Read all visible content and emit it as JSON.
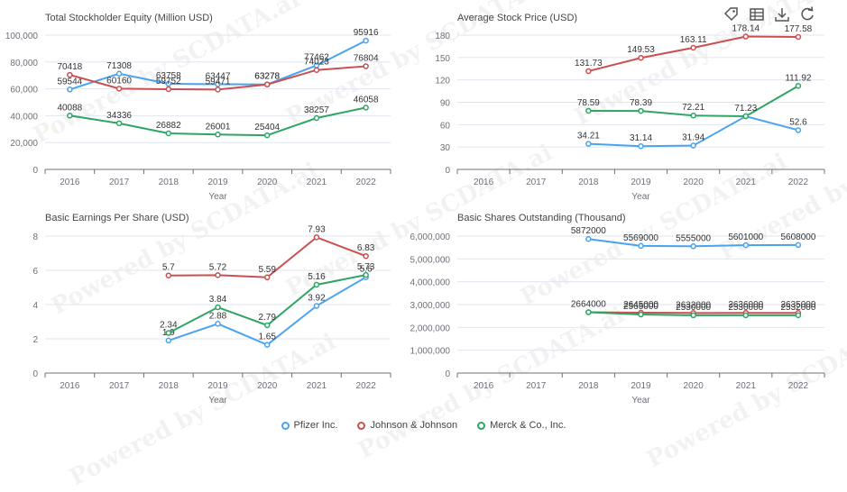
{
  "toolbar": [
    {
      "name": "tag-icon",
      "label": "tag"
    },
    {
      "name": "table-icon",
      "label": "data view"
    },
    {
      "name": "download-icon",
      "label": "download"
    },
    {
      "name": "refresh-icon",
      "label": "refresh"
    }
  ],
  "watermark": "Powered by SCDATA.ai",
  "legend": [
    {
      "name": "Pfizer Inc.",
      "color": "#4aa3ef"
    },
    {
      "name": "Johnson & Johnson",
      "color": "#c9504f"
    },
    {
      "name": "Merck & Co., Inc.",
      "color": "#2fa563"
    }
  ],
  "chart_data": [
    {
      "type": "line",
      "title": "Total Stockholder Equity (Million USD)",
      "xlabel": "Year",
      "categories": [
        "2016",
        "2017",
        "2018",
        "2019",
        "2020",
        "2021",
        "2022"
      ],
      "ylim": [
        0,
        100000
      ],
      "yticks": [
        0,
        20000,
        40000,
        60000,
        80000,
        100000
      ],
      "ytick_labels": [
        "0",
        "20,000",
        "40,000",
        "60,000",
        "80,000",
        "100,000"
      ],
      "grid": true,
      "series": [
        {
          "name": "Pfizer Inc.",
          "values": [
            59544,
            71308,
            63758,
            63447,
            63278,
            77462,
            95916
          ],
          "labels": [
            "59544",
            "71308",
            "63758",
            "63447",
            "63278",
            "77462",
            "95916"
          ]
        },
        {
          "name": "Johnson & Johnson",
          "values": [
            70418,
            60160,
            59752,
            59471,
            63278,
            74023,
            76804
          ],
          "labels": [
            "70418",
            "60160",
            "59752",
            "59471",
            "63278",
            "74023",
            "76804"
          ]
        },
        {
          "name": "Merck & Co., Inc.",
          "values": [
            40088,
            34336,
            26882,
            26001,
            25404,
            38257,
            46058
          ],
          "labels": [
            "40088",
            "34336",
            "26882",
            "26001",
            "25404",
            "38257",
            "46058"
          ]
        }
      ]
    },
    {
      "type": "line",
      "title": "Average Stock Price (USD)",
      "xlabel": "Year",
      "categories": [
        "2016",
        "2017",
        "2018",
        "2019",
        "2020",
        "2021",
        "2022"
      ],
      "ylim": [
        0,
        180
      ],
      "yticks": [
        0,
        30,
        60,
        90,
        120,
        150,
        180
      ],
      "ytick_labels": [
        "0",
        "30",
        "60",
        "90",
        "120",
        "150",
        "180"
      ],
      "grid": true,
      "series": [
        {
          "name": "Pfizer Inc.",
          "values": [
            null,
            null,
            34.21,
            31.14,
            31.94,
            71.23,
            52.6
          ],
          "labels": [
            "",
            "",
            "34.21",
            "31.14",
            "31.94",
            "",
            "52.6"
          ]
        },
        {
          "name": "Johnson & Johnson",
          "values": [
            null,
            null,
            131.73,
            149.53,
            163.11,
            178.14,
            177.58
          ],
          "labels": [
            "",
            "",
            "131.73",
            "149.53",
            "163.11",
            "178.14",
            "177.58"
          ]
        },
        {
          "name": "Merck & Co., Inc.",
          "values": [
            null,
            null,
            78.59,
            78.39,
            72.21,
            71.23,
            111.92
          ],
          "labels": [
            "",
            "",
            "78.59",
            "78.39",
            "72.21",
            "71.23",
            "111.92"
          ]
        }
      ]
    },
    {
      "type": "line",
      "title": "Basic Earnings Per Share (USD)",
      "xlabel": "Year",
      "categories": [
        "2016",
        "2017",
        "2018",
        "2019",
        "2020",
        "2021",
        "2022"
      ],
      "ylim": [
        0,
        8
      ],
      "yticks": [
        0,
        2,
        4,
        6,
        8
      ],
      "ytick_labels": [
        "0",
        "2",
        "4",
        "6",
        "8"
      ],
      "grid": true,
      "series": [
        {
          "name": "Pfizer Inc.",
          "values": [
            null,
            null,
            1.9,
            2.88,
            1.65,
            3.92,
            5.6
          ],
          "labels": [
            "",
            "",
            "1.9",
            "2.88",
            "1.65",
            "3.92",
            "5.6"
          ]
        },
        {
          "name": "Johnson & Johnson",
          "values": [
            null,
            null,
            5.7,
            5.72,
            5.59,
            7.93,
            6.83
          ],
          "labels": [
            "",
            "",
            "5.7",
            "5.72",
            "5.59",
            "7.93",
            "6.83"
          ]
        },
        {
          "name": "Merck & Co., Inc.",
          "values": [
            null,
            null,
            2.34,
            3.84,
            2.79,
            5.16,
            5.73
          ],
          "labels": [
            "",
            "",
            "2.34",
            "3.84",
            "2.79",
            "5.16",
            "5.73"
          ]
        }
      ]
    },
    {
      "type": "line",
      "title": "Basic Shares Outstanding (Thousand)",
      "xlabel": "Year",
      "categories": [
        "2016",
        "2017",
        "2018",
        "2019",
        "2020",
        "2021",
        "2022"
      ],
      "ylim": [
        0,
        6000000
      ],
      "yticks": [
        0,
        1000000,
        2000000,
        3000000,
        4000000,
        5000000,
        6000000
      ],
      "ytick_labels": [
        "0",
        "1,000,000",
        "2,000,000",
        "3,000,000",
        "4,000,000",
        "5,000,000",
        "6,000,000"
      ],
      "grid": true,
      "series": [
        {
          "name": "Pfizer Inc.",
          "values": [
            null,
            null,
            5872000,
            5569000,
            5555000,
            5601000,
            5608000
          ],
          "labels": [
            "",
            "",
            "5872000",
            "5569000",
            "5555000",
            "5601000",
            "5608000"
          ]
        },
        {
          "name": "Johnson & Johnson",
          "values": [
            null,
            null,
            2664000,
            2645000,
            2632000,
            2636000,
            2635000
          ],
          "labels": [
            "",
            "",
            "2664000",
            "2645000",
            "2632000",
            "2636000",
            "2635000"
          ]
        },
        {
          "name": "Merck & Co., Inc.",
          "values": [
            null,
            null,
            2664000,
            2565000,
            2530000,
            2530000,
            2532000
          ],
          "labels": [
            "",
            "",
            "",
            "2565000",
            "2530000",
            "2530000",
            "2532000"
          ]
        }
      ]
    }
  ]
}
